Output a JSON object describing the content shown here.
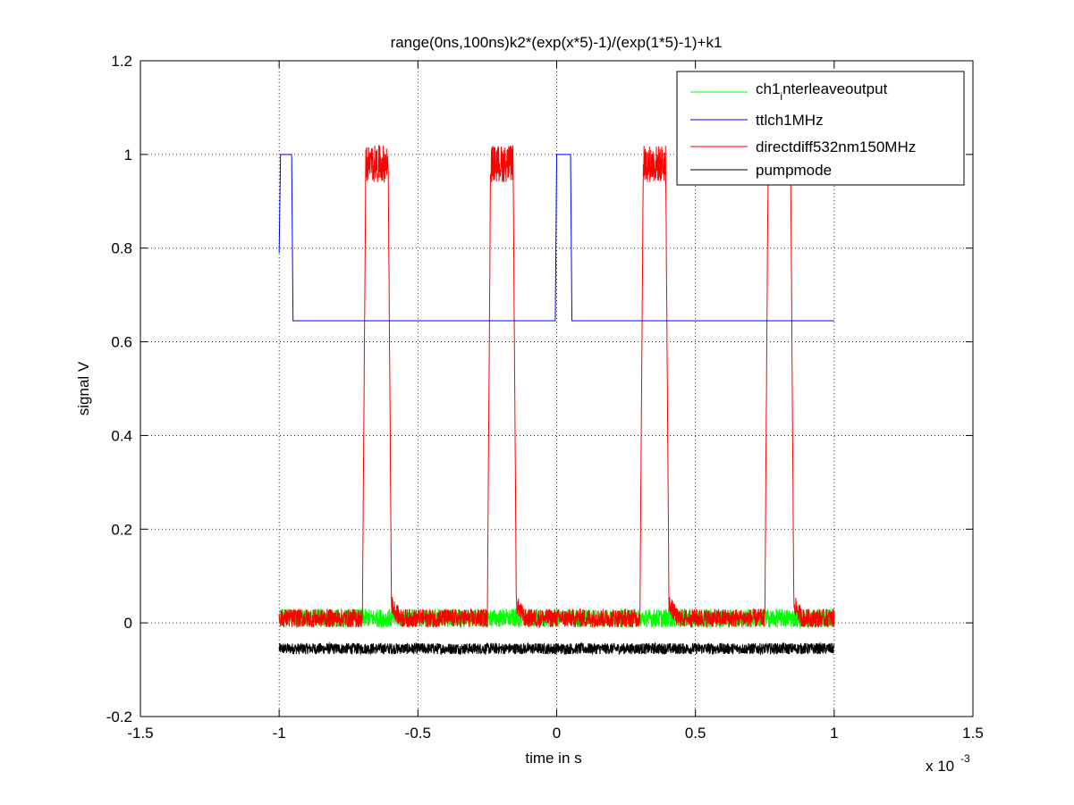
{
  "chart_data": {
    "type": "line",
    "title": "range(0ns,100ns)k2*(exp(x*5)-1)/(exp(1*5)-1)+k1",
    "xlabel": "time in s",
    "ylabel": "signal V",
    "x_multiplier": "x 10",
    "x_multiplier_exp": "-3",
    "xlim": [
      -1.5,
      1.5
    ],
    "ylim": [
      -0.2,
      1.2
    ],
    "xticks": [
      -1.5,
      -1,
      -0.5,
      0,
      0.5,
      1,
      1.5
    ],
    "xtick_labels": [
      "-1.5",
      "-1",
      "-0.5",
      "0",
      "0.5",
      "1",
      "1.5"
    ],
    "yticks": [
      -0.2,
      0,
      0.2,
      0.4,
      0.6,
      0.8,
      1,
      1.2
    ],
    "ytick_labels": [
      "-0.2",
      "0",
      "0.2",
      "0.4",
      "0.6",
      "0.8",
      "1",
      "1.2"
    ],
    "grid": true,
    "legend_position": "top-right",
    "series": [
      {
        "name": "ch1_interleaveoutput",
        "legend_main": "ch1",
        "legend_sub": "i",
        "legend_rest": "nterleaveoutput",
        "color": "#00ff00",
        "style": "noise",
        "base": 0.01,
        "amplitude": 0.02,
        "x_range": [
          -1,
          1
        ]
      },
      {
        "name": "ttlch1MHz",
        "color": "#0000ff",
        "style": "step",
        "x": [
          -1,
          -0.995,
          -0.955,
          -0.95,
          -0.005,
          0,
          0.05,
          0.055,
          1
        ],
        "y": [
          0.79,
          1.0,
          1.0,
          0.645,
          0.645,
          1.0,
          1.0,
          0.645,
          0.645
        ]
      },
      {
        "name": "directdiff532nm150MHz",
        "color": "#ff0000",
        "style": "pulses",
        "base": 0.01,
        "amplitude": 0.02,
        "high": 0.98,
        "pulses": [
          [
            -0.7,
            -0.595
          ],
          [
            -0.25,
            -0.145
          ],
          [
            0.3,
            0.405
          ],
          [
            0.75,
            0.855
          ]
        ],
        "x_range": [
          -1,
          1
        ]
      },
      {
        "name": "pumpmode",
        "color": "#000000",
        "style": "noise",
        "base": -0.055,
        "amplitude": 0.012,
        "x_range": [
          -1,
          1
        ]
      }
    ]
  }
}
